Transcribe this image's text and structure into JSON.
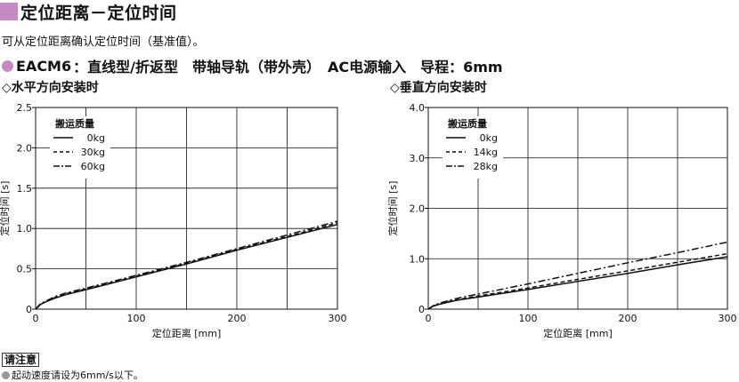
{
  "header": {
    "title": "定位距离－定位时间",
    "subtitle": "可从定位距离确认定位时间（基准值）。",
    "model_name": "EACM6",
    "model_desc": "：直线型/折返型　带轴导轨（带外壳）　AC电源输入　导程：6mm",
    "accent_color": "#c58ac4"
  },
  "chart_data": [
    {
      "type": "line",
      "title": "◇水平方向安装时",
      "xlabel": "定位距离 [mm]",
      "ylabel": "定位时间 [s]",
      "xlim": [
        0,
        300
      ],
      "ylim": [
        0,
        2.5
      ],
      "xticks": [
        "0",
        "100",
        "200",
        "300"
      ],
      "yticks": [
        "0",
        "0.5",
        "1.0",
        "1.5",
        "2.0",
        "2.5"
      ],
      "grid": true,
      "legend_title": "搬运质量",
      "legend_position": "top-left",
      "series": [
        {
          "name": "0kg",
          "style": "solid",
          "x": [
            0,
            5,
            10,
            20,
            30,
            50,
            100,
            150,
            200,
            250,
            300
          ],
          "y": [
            0,
            0.06,
            0.09,
            0.14,
            0.18,
            0.24,
            0.4,
            0.56,
            0.73,
            0.89,
            1.05
          ]
        },
        {
          "name": "30kg",
          "style": "dashed",
          "x": [
            0,
            5,
            10,
            20,
            30,
            50,
            100,
            150,
            200,
            250,
            300
          ],
          "y": [
            0,
            0.06,
            0.09,
            0.15,
            0.19,
            0.25,
            0.41,
            0.57,
            0.74,
            0.9,
            1.07
          ]
        },
        {
          "name": "60kg",
          "style": "dashdot",
          "x": [
            0,
            5,
            10,
            20,
            30,
            50,
            100,
            150,
            200,
            250,
            300
          ],
          "y": [
            0,
            0.07,
            0.1,
            0.16,
            0.2,
            0.26,
            0.42,
            0.58,
            0.75,
            0.92,
            1.09
          ]
        }
      ]
    },
    {
      "type": "line",
      "title": "◇垂直方向安装时",
      "xlabel": "定位距离 [mm]",
      "ylabel": "定位时间 [s]",
      "xlim": [
        0,
        300
      ],
      "ylim": [
        0,
        4.0
      ],
      "xticks": [
        "0",
        "100",
        "200",
        "300"
      ],
      "yticks": [
        "0",
        "1.0",
        "2.0",
        "3.0",
        "4.0"
      ],
      "grid": true,
      "legend_title": "搬运质量",
      "legend_position": "top-left",
      "series": [
        {
          "name": "0kg",
          "style": "solid",
          "x": [
            0,
            5,
            10,
            20,
            30,
            50,
            100,
            150,
            200,
            250,
            300
          ],
          "y": [
            0,
            0.06,
            0.09,
            0.14,
            0.18,
            0.24,
            0.39,
            0.55,
            0.71,
            0.88,
            1.04
          ]
        },
        {
          "name": "14kg",
          "style": "dashed",
          "x": [
            0,
            5,
            10,
            20,
            30,
            50,
            100,
            150,
            200,
            250,
            300
          ],
          "y": [
            0,
            0.06,
            0.1,
            0.15,
            0.19,
            0.26,
            0.42,
            0.59,
            0.76,
            0.93,
            1.1
          ]
        },
        {
          "name": "28kg",
          "style": "dashdot",
          "x": [
            0,
            5,
            10,
            20,
            30,
            50,
            100,
            150,
            200,
            250,
            300
          ],
          "y": [
            0,
            0.07,
            0.11,
            0.17,
            0.22,
            0.3,
            0.5,
            0.71,
            0.92,
            1.12,
            1.33
          ]
        }
      ]
    }
  ],
  "notice": {
    "label": "请注意",
    "text": "起动速度请设为6mm/s以下。"
  }
}
